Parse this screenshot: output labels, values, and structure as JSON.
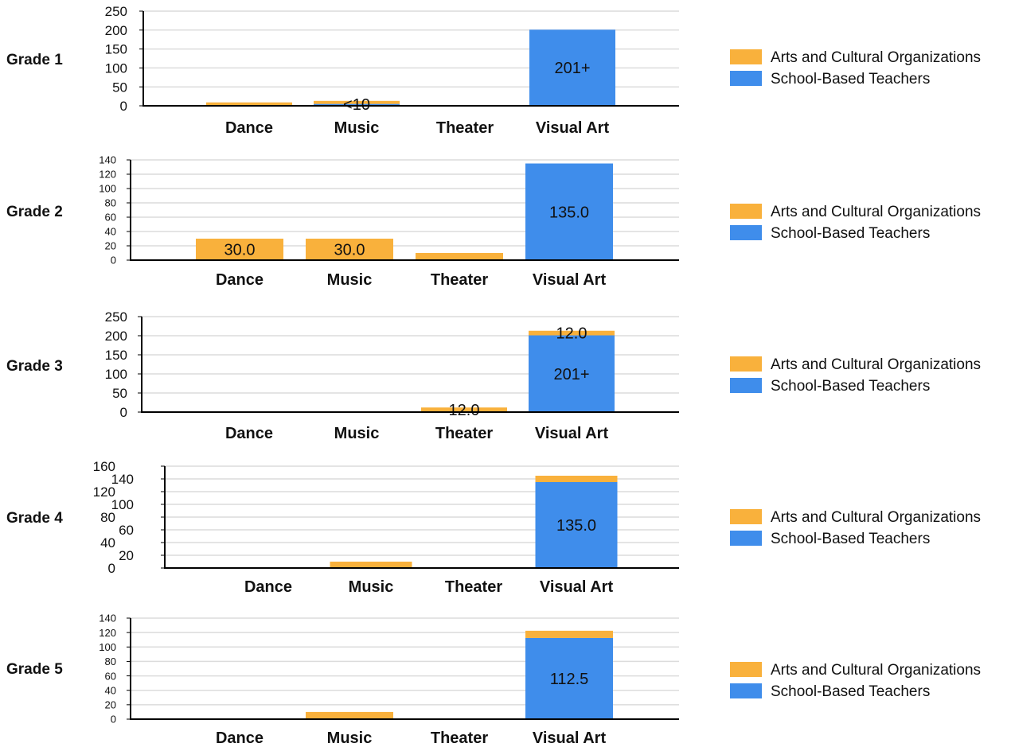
{
  "colors": {
    "arts": "#F9B13C",
    "teachers": "#3F8DEB",
    "grid": "#dcdcdc",
    "axis": "#000000"
  },
  "legend": [
    "Arts and Cultural Organizations",
    "School-Based Teachers"
  ],
  "chart_data": [
    {
      "type": "bar",
      "stacked": true,
      "title": "Grade 1",
      "categories": [
        "Dance",
        "Music",
        "Theater",
        "Visual Art"
      ],
      "series": [
        {
          "name": "School-Based Teachers",
          "values": [
            0,
            5,
            0,
            201
          ],
          "labels": [
            "",
            "<10",
            "",
            "201+"
          ]
        },
        {
          "name": "Arts and Cultural Organizations",
          "values": [
            9,
            8,
            0,
            0
          ],
          "labels": [
            "",
            "",
            "",
            ""
          ]
        }
      ],
      "ylim": [
        0,
        250
      ],
      "yticks": [
        0,
        50,
        100,
        150,
        200,
        250
      ],
      "grid": true,
      "legend_position": "right"
    },
    {
      "type": "bar",
      "stacked": true,
      "title": "Grade 2",
      "categories": [
        "Dance",
        "Music",
        "Theater",
        "Visual Art"
      ],
      "series": [
        {
          "name": "School-Based Teachers",
          "values": [
            0,
            0,
            0,
            135
          ],
          "labels": [
            "",
            "",
            "",
            "135.0"
          ]
        },
        {
          "name": "Arts and Cultural Organizations",
          "values": [
            30,
            30,
            10,
            0
          ],
          "labels": [
            "30.0",
            "30.0",
            "",
            ""
          ]
        }
      ],
      "ylim": [
        0,
        140
      ],
      "yticks": [
        0,
        20,
        40,
        60,
        80,
        100,
        120,
        140
      ],
      "grid": true,
      "legend_position": "right"
    },
    {
      "type": "bar",
      "stacked": true,
      "title": "Grade 3",
      "categories": [
        "Dance",
        "Music",
        "Theater",
        "Visual Art"
      ],
      "series": [
        {
          "name": "School-Based Teachers",
          "values": [
            0,
            0,
            0,
            201
          ],
          "labels": [
            "",
            "",
            "",
            "201+"
          ]
        },
        {
          "name": "Arts and Cultural Organizations",
          "values": [
            0,
            0,
            12,
            12
          ],
          "labels": [
            "",
            "",
            "12.0",
            "12.0"
          ]
        }
      ],
      "ylim": [
        0,
        250
      ],
      "yticks": [
        0,
        50,
        100,
        150,
        200,
        250
      ],
      "grid": true,
      "legend_position": "right"
    },
    {
      "type": "bar",
      "stacked": true,
      "title": "Grade 4",
      "categories": [
        "Dance",
        "Music",
        "Theater",
        "Visual Art"
      ],
      "series": [
        {
          "name": "School-Based Teachers",
          "values": [
            0,
            0,
            0,
            135
          ],
          "labels": [
            "",
            "",
            "",
            "135.0"
          ]
        },
        {
          "name": "Arts and Cultural Organizations",
          "values": [
            0,
            10,
            0,
            10
          ],
          "labels": [
            "",
            "",
            "",
            ""
          ]
        }
      ],
      "ylim": [
        0,
        160
      ],
      "yticks": [
        0,
        20,
        40,
        60,
        80,
        100,
        120,
        140,
        160
      ],
      "ytick_labels": [
        "0",
        "20",
        "40",
        "60",
        "80",
        "100",
        "120",
        "140",
        "160"
      ],
      "grid": true,
      "legend_position": "right"
    },
    {
      "type": "bar",
      "stacked": true,
      "title": "Grade 5",
      "categories": [
        "Dance",
        "Music",
        "Theater",
        "Visual Art"
      ],
      "series": [
        {
          "name": "School-Based Teachers",
          "values": [
            0,
            0,
            0,
            112.5
          ],
          "labels": [
            "",
            "",
            "",
            "112.5"
          ]
        },
        {
          "name": "Arts and Cultural Organizations",
          "values": [
            0,
            10,
            0,
            10
          ],
          "labels": [
            "",
            "",
            "",
            ""
          ]
        }
      ],
      "ylim": [
        0,
        140
      ],
      "yticks": [
        0,
        20,
        40,
        60,
        80,
        100,
        120,
        140
      ],
      "grid": true,
      "legend_position": "right"
    }
  ]
}
